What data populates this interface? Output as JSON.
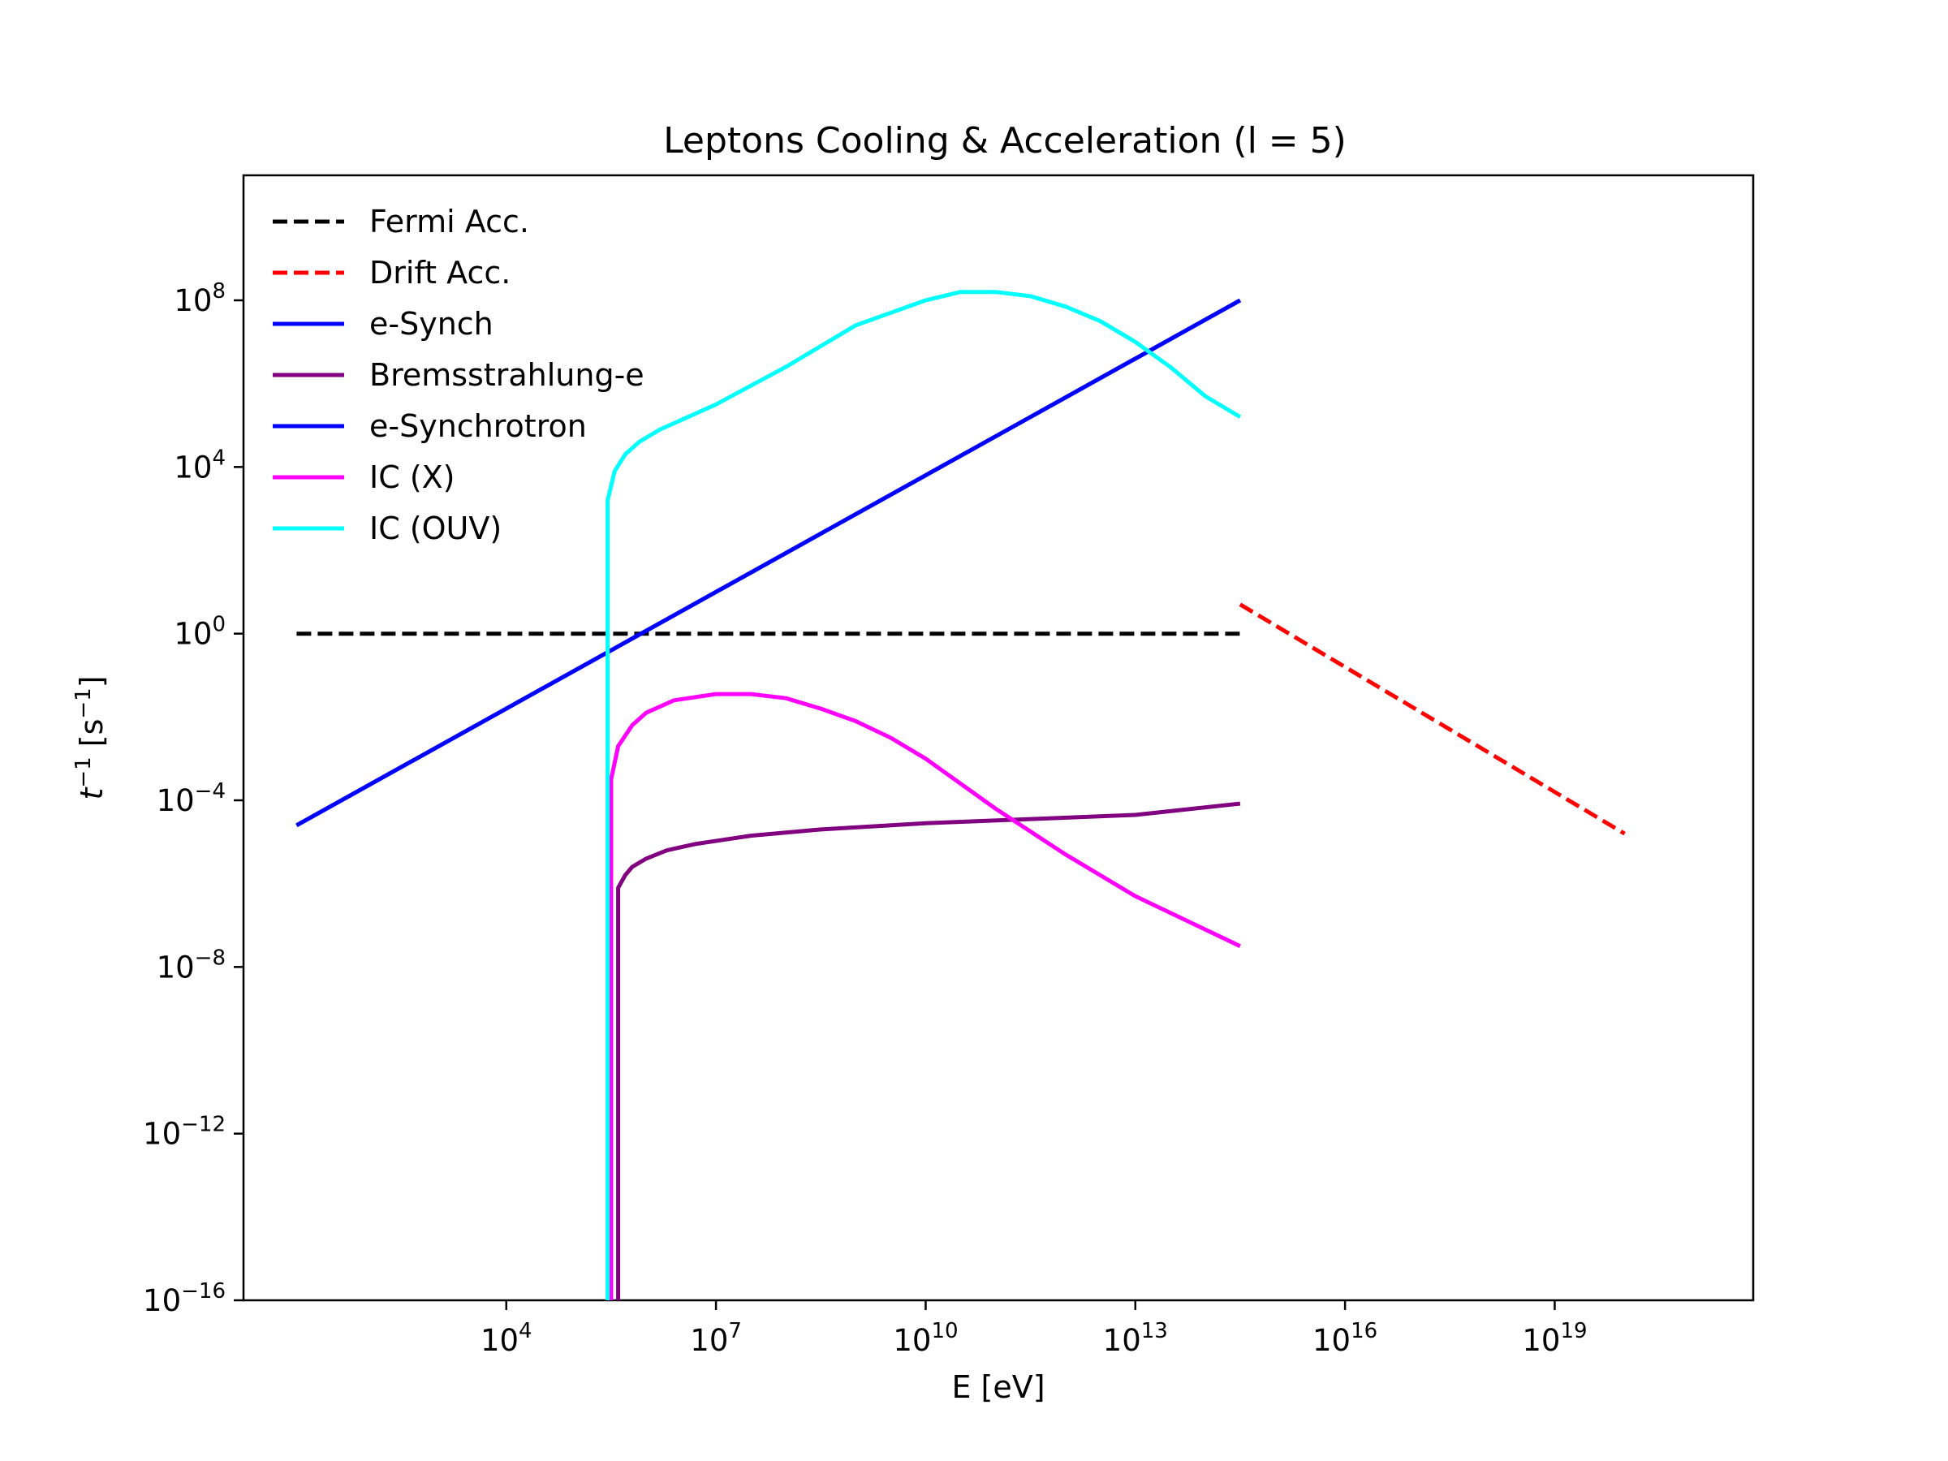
{
  "chart_data": {
    "type": "line",
    "title": "Leptons Cooling & Acceleration (l = 5)",
    "xlabel": "E [eV]",
    "ylabel_base": "t",
    "ylabel_exp": "−1",
    "ylabel_unit_open": " [s",
    "ylabel_unit_exp": "−1",
    "ylabel_unit_close": "]",
    "x_scale": "log",
    "y_scale": "log",
    "xlim_log10": [
      0.24,
      21.84
    ],
    "ylim_log10": [
      -16,
      11
    ],
    "grid": false,
    "legend_position": "upper left",
    "x_ticks": [
      {
        "base": "10",
        "exp": "4",
        "log": 4
      },
      {
        "base": "10",
        "exp": "7",
        "log": 7
      },
      {
        "base": "10",
        "exp": "10",
        "log": 10
      },
      {
        "base": "10",
        "exp": "13",
        "log": 13
      },
      {
        "base": "10",
        "exp": "16",
        "log": 16
      },
      {
        "base": "10",
        "exp": "19",
        "log": 19
      }
    ],
    "y_ticks": [
      {
        "base": "10",
        "exp": "8",
        "log": 8
      },
      {
        "base": "10",
        "exp": "4",
        "log": 4
      },
      {
        "base": "10",
        "exp": "0",
        "log": 0
      },
      {
        "base": "10",
        "exp": "−4",
        "log": -4
      },
      {
        "base": "10",
        "exp": "−8",
        "log": -8
      },
      {
        "base": "10",
        "exp": "−12",
        "log": -12
      },
      {
        "base": "10",
        "exp": "−16",
        "log": -16
      }
    ],
    "series": [
      {
        "name": "Fermi Acc.",
        "color": "#000000",
        "dashed": true,
        "x_log10": [
          1,
          14.5
        ],
        "y_log10": [
          0,
          0
        ]
      },
      {
        "name": "Drift Acc.",
        "color": "#ff0000",
        "dashed": true,
        "x_log10": [
          14.5,
          20
        ],
        "y_log10": [
          0.7,
          -4.8
        ]
      },
      {
        "name": "e-Synch",
        "color": "#0000ff",
        "dashed": false,
        "x_log10": [
          1,
          14.5
        ],
        "y_log10": [
          -4.6,
          8.0
        ]
      },
      {
        "name": "Bremsstrahlung-e",
        "color": "#800080",
        "dashed": false,
        "x_log10": [
          5.6,
          5.6,
          5.7,
          5.8,
          6.0,
          6.3,
          6.7,
          7.5,
          8.5,
          10,
          11.5,
          13,
          14.5
        ],
        "y_log10": [
          -16,
          -6.1,
          -5.8,
          -5.6,
          -5.4,
          -5.2,
          -5.05,
          -4.85,
          -4.7,
          -4.55,
          -4.45,
          -4.35,
          -4.08
        ]
      },
      {
        "name": "e-Synchrotron",
        "color": "#0000ff",
        "dashed": false,
        "x_log10": [
          1,
          14.5
        ],
        "y_log10": [
          -4.6,
          8.0
        ]
      },
      {
        "name": "IC (X)",
        "color": "#ff00ff",
        "dashed": false,
        "x_log10": [
          5.5,
          5.5,
          5.6,
          5.8,
          6.0,
          6.4,
          7.0,
          7.5,
          8.0,
          8.5,
          9.0,
          9.5,
          10.0,
          11.0,
          12.0,
          13.0,
          14.5
        ],
        "y_log10": [
          -16,
          -3.5,
          -2.7,
          -2.2,
          -1.9,
          -1.6,
          -1.45,
          -1.45,
          -1.55,
          -1.8,
          -2.1,
          -2.5,
          -3.0,
          -4.2,
          -5.3,
          -6.3,
          -7.5
        ]
      },
      {
        "name": "IC (OUV)",
        "color": "#00ffff",
        "dashed": false,
        "x_log10": [
          5.45,
          5.45,
          5.55,
          5.7,
          5.9,
          6.2,
          6.6,
          7.0,
          8.0,
          9.0,
          10.0,
          10.5,
          11.0,
          11.5,
          12.0,
          12.5,
          13.0,
          13.5,
          14.0,
          14.5
        ],
        "y_log10": [
          -16,
          3.2,
          3.9,
          4.3,
          4.6,
          4.9,
          5.2,
          5.5,
          6.4,
          7.4,
          8.0,
          8.2,
          8.2,
          8.1,
          7.85,
          7.5,
          7.0,
          6.4,
          5.7,
          5.2
        ]
      }
    ]
  }
}
